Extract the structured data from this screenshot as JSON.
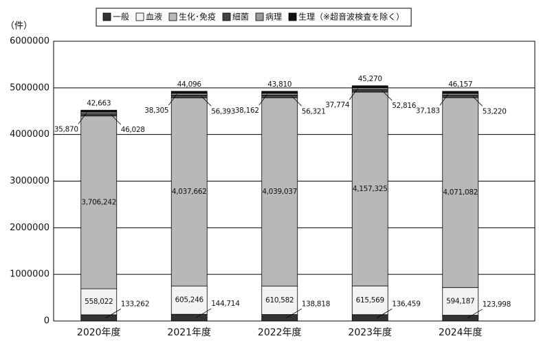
{
  "chart_data": {
    "type": "stacked-bar",
    "y_label": "（件）",
    "categories": [
      "2020年度",
      "2021年度",
      "2022年度",
      "2023年度",
      "2024年度"
    ],
    "series": [
      {
        "name": "一般",
        "color": "#333333",
        "values": [
          133262,
          144714,
          138818,
          136459,
          123998
        ],
        "value_labels": [
          "133,262",
          "144,714",
          "138,818",
          "136,459",
          "123,998"
        ]
      },
      {
        "name": "血液",
        "color": "#f2f2f2",
        "values": [
          558022,
          605246,
          610582,
          615569,
          594187
        ],
        "value_labels": [
          "558,022",
          "605,246",
          "610,582",
          "615,569",
          "594,187"
        ]
      },
      {
        "name": "生化･免疫",
        "color": "#b8b8b8",
        "values": [
          3706242,
          4037662,
          4039037,
          4157325,
          4071082
        ],
        "value_labels": [
          "3,706,242",
          "4,037,662",
          "4,039,037",
          "4,157,325",
          "4,071,082"
        ]
      },
      {
        "name": "細菌",
        "color": "#444444",
        "values": [
          46028,
          56393,
          56321,
          52816,
          53220
        ],
        "value_labels": [
          "46,028",
          "56,393",
          "56,321",
          "52,816",
          "53,220"
        ]
      },
      {
        "name": "病理",
        "color": "#999999",
        "values": [
          35870,
          38305,
          38162,
          37774,
          37183
        ],
        "value_labels": [
          "35,870",
          "38,305",
          "38,162",
          "37,774",
          "37,183"
        ]
      },
      {
        "name": "生理（※超音波検査を除く）",
        "color": "#111111",
        "values": [
          42663,
          44096,
          43810,
          45270,
          46157
        ],
        "value_labels": [
          "42,663",
          "44,096",
          "43,810",
          "45,270",
          "46,157"
        ]
      }
    ],
    "ylim": [
      0,
      6000000
    ],
    "yticks": [
      0,
      1000000,
      2000000,
      3000000,
      4000000,
      5000000,
      6000000
    ],
    "grid": true
  }
}
